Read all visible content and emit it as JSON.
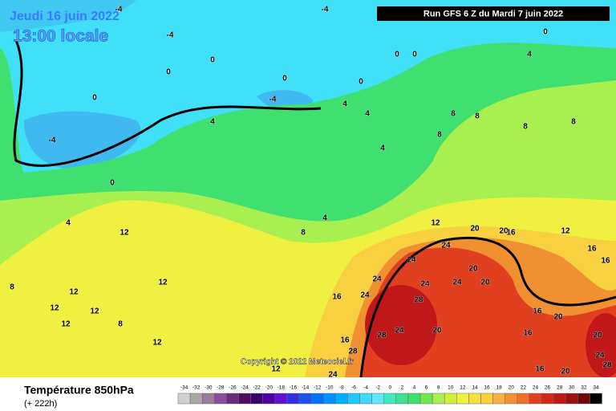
{
  "header": {
    "date": "Jeudi 16 juin 2022",
    "time": "13:00 locale",
    "run": "Run GFS 6 Z du Mardi 7 juin 2022"
  },
  "copyright": "Copyright © 2022 Meteociel.fr",
  "footer": {
    "title": "Température 850hPa",
    "subtitle": "(+ 222h)"
  },
  "legend": {
    "values": [
      -34,
      -32,
      -30,
      -28,
      -26,
      -24,
      -22,
      -20,
      -18,
      -16,
      -14,
      -12,
      -10,
      -8,
      -6,
      -4,
      -2,
      0,
      2,
      4,
      6,
      8,
      10,
      12,
      14,
      16,
      18,
      20,
      22,
      24,
      26,
      28,
      30,
      32,
      34
    ],
    "colors": [
      "#d0d0d0",
      "#a8a8a8",
      "#9a7a9a",
      "#8c4c9c",
      "#6c2c7c",
      "#500c60",
      "#3c0070",
      "#5000a0",
      "#6010d0",
      "#3030e0",
      "#1c50f0",
      "#0070ff",
      "#0090ff",
      "#00b0ff",
      "#20c8ff",
      "#40d8ff",
      "#60e8ff",
      "#40e8c0",
      "#40e090",
      "#40e070",
      "#70e850",
      "#a8f050",
      "#d0f040",
      "#f0f040",
      "#f8e040",
      "#f8d040",
      "#f8b040",
      "#f09030",
      "#f07028",
      "#e04020",
      "#d02818",
      "#c01818",
      "#a01010",
      "#700808",
      "#000000"
    ]
  },
  "map": {
    "labels": [
      -4,
      -4,
      -4,
      0,
      0,
      0,
      0,
      0,
      0,
      0,
      4,
      0,
      -4,
      4,
      -4,
      4,
      4,
      4,
      8,
      8,
      8,
      8,
      8,
      0,
      4,
      4,
      12,
      8,
      12,
      20,
      20,
      16,
      12,
      16,
      16,
      24,
      24,
      20,
      24,
      24,
      24,
      20,
      12,
      8,
      12,
      16,
      24,
      28,
      12,
      12,
      8,
      12,
      16,
      28,
      24,
      20,
      20,
      16,
      20,
      12,
      16,
      28,
      24,
      16,
      20,
      28,
      12,
      24
    ]
  }
}
